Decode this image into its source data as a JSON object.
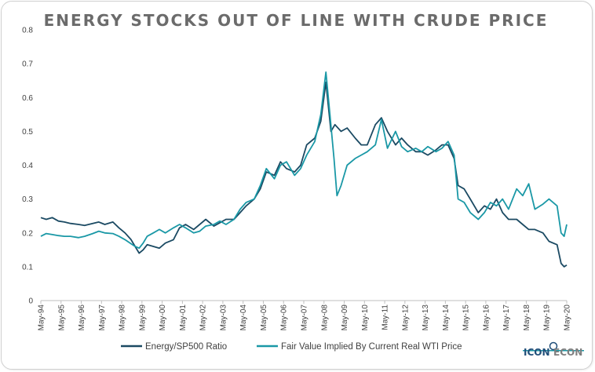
{
  "logo": {
    "text_left": "ICON",
    "text_right": "ECON",
    "color_left": "#1f4e79",
    "color_right": "#7f7f7f"
  },
  "chart_data": {
    "type": "line",
    "title": "ENERGY STOCKS OUT OF LINE WITH CRUDE PRICE",
    "xlabel": "",
    "ylabel": "",
    "ylim": [
      0,
      0.8
    ],
    "yticks": [
      "0",
      "0.1",
      "0.2",
      "0.3",
      "0.4",
      "0.5",
      "0.6",
      "0.7",
      "0.8"
    ],
    "xticks": [
      "May-94",
      "May-95",
      "May-96",
      "May-97",
      "May-98",
      "May-99",
      "May-00",
      "May-01",
      "May-02",
      "May-03",
      "May-04",
      "May-05",
      "May-06",
      "May-07",
      "May-08",
      "May-09",
      "May-10",
      "May-11",
      "May-12",
      "May-13",
      "May-14",
      "May-15",
      "May-16",
      "May-17",
      "May-18",
      "May-19",
      "May-20"
    ],
    "grid": false,
    "legend_position": "bottom",
    "series": [
      {
        "name": "Energy/SP500 Ratio",
        "color": "#1b4a63",
        "points": [
          [
            1994.33,
            0.245
          ],
          [
            1994.6,
            0.24
          ],
          [
            1994.9,
            0.245
          ],
          [
            1995.2,
            0.235
          ],
          [
            1995.5,
            0.232
          ],
          [
            1995.8,
            0.228
          ],
          [
            1996.2,
            0.225
          ],
          [
            1996.5,
            0.222
          ],
          [
            1996.9,
            0.228
          ],
          [
            1997.2,
            0.232
          ],
          [
            1997.5,
            0.225
          ],
          [
            1997.9,
            0.232
          ],
          [
            1998.2,
            0.215
          ],
          [
            1998.5,
            0.2
          ],
          [
            1998.8,
            0.18
          ],
          [
            1999.0,
            0.16
          ],
          [
            1999.2,
            0.14
          ],
          [
            1999.4,
            0.15
          ],
          [
            1999.6,
            0.165
          ],
          [
            1999.9,
            0.16
          ],
          [
            2000.2,
            0.155
          ],
          [
            2000.5,
            0.17
          ],
          [
            2000.9,
            0.18
          ],
          [
            2001.2,
            0.215
          ],
          [
            2001.5,
            0.225
          ],
          [
            2001.9,
            0.21
          ],
          [
            2002.2,
            0.225
          ],
          [
            2002.5,
            0.24
          ],
          [
            2002.9,
            0.22
          ],
          [
            2003.2,
            0.23
          ],
          [
            2003.5,
            0.24
          ],
          [
            2003.9,
            0.24
          ],
          [
            2004.2,
            0.26
          ],
          [
            2004.5,
            0.28
          ],
          [
            2004.9,
            0.3
          ],
          [
            2005.2,
            0.33
          ],
          [
            2005.5,
            0.38
          ],
          [
            2005.9,
            0.37
          ],
          [
            2006.2,
            0.41
          ],
          [
            2006.5,
            0.39
          ],
          [
            2006.9,
            0.38
          ],
          [
            2007.2,
            0.4
          ],
          [
            2007.5,
            0.46
          ],
          [
            2007.9,
            0.48
          ],
          [
            2008.2,
            0.53
          ],
          [
            2008.45,
            0.645
          ],
          [
            2008.7,
            0.5
          ],
          [
            2008.9,
            0.52
          ],
          [
            2009.2,
            0.5
          ],
          [
            2009.5,
            0.51
          ],
          [
            2009.9,
            0.48
          ],
          [
            2010.2,
            0.46
          ],
          [
            2010.5,
            0.46
          ],
          [
            2010.9,
            0.52
          ],
          [
            2011.2,
            0.54
          ],
          [
            2011.5,
            0.5
          ],
          [
            2011.9,
            0.46
          ],
          [
            2012.2,
            0.48
          ],
          [
            2012.5,
            0.46
          ],
          [
            2012.9,
            0.44
          ],
          [
            2013.2,
            0.44
          ],
          [
            2013.5,
            0.43
          ],
          [
            2013.9,
            0.445
          ],
          [
            2014.2,
            0.46
          ],
          [
            2014.5,
            0.46
          ],
          [
            2014.8,
            0.42
          ],
          [
            2015.0,
            0.34
          ],
          [
            2015.3,
            0.33
          ],
          [
            2015.6,
            0.3
          ],
          [
            2016.0,
            0.26
          ],
          [
            2016.3,
            0.28
          ],
          [
            2016.6,
            0.27
          ],
          [
            2016.9,
            0.3
          ],
          [
            2017.2,
            0.26
          ],
          [
            2017.5,
            0.24
          ],
          [
            2017.9,
            0.24
          ],
          [
            2018.2,
            0.225
          ],
          [
            2018.5,
            0.21
          ],
          [
            2018.8,
            0.21
          ],
          [
            2019.2,
            0.2
          ],
          [
            2019.5,
            0.175
          ],
          [
            2019.9,
            0.165
          ],
          [
            2020.1,
            0.11
          ],
          [
            2020.25,
            0.1
          ],
          [
            2020.38,
            0.105
          ]
        ]
      },
      {
        "name": "Fair Value Implied By Current Real WTI Price",
        "color": "#1a98a6",
        "points": [
          [
            1994.33,
            0.19
          ],
          [
            1994.6,
            0.198
          ],
          [
            1994.9,
            0.195
          ],
          [
            1995.2,
            0.192
          ],
          [
            1995.5,
            0.19
          ],
          [
            1995.8,
            0.19
          ],
          [
            1996.2,
            0.186
          ],
          [
            1996.5,
            0.19
          ],
          [
            1996.9,
            0.198
          ],
          [
            1997.2,
            0.205
          ],
          [
            1997.5,
            0.2
          ],
          [
            1997.9,
            0.198
          ],
          [
            1998.2,
            0.19
          ],
          [
            1998.5,
            0.18
          ],
          [
            1998.8,
            0.168
          ],
          [
            1999.0,
            0.16
          ],
          [
            1999.2,
            0.155
          ],
          [
            1999.4,
            0.17
          ],
          [
            1999.6,
            0.19
          ],
          [
            1999.9,
            0.2
          ],
          [
            2000.2,
            0.21
          ],
          [
            2000.5,
            0.2
          ],
          [
            2000.9,
            0.215
          ],
          [
            2001.2,
            0.225
          ],
          [
            2001.5,
            0.215
          ],
          [
            2001.9,
            0.2
          ],
          [
            2002.2,
            0.205
          ],
          [
            2002.5,
            0.22
          ],
          [
            2002.9,
            0.225
          ],
          [
            2003.2,
            0.235
          ],
          [
            2003.5,
            0.225
          ],
          [
            2003.9,
            0.24
          ],
          [
            2004.2,
            0.27
          ],
          [
            2004.5,
            0.29
          ],
          [
            2004.9,
            0.3
          ],
          [
            2005.2,
            0.34
          ],
          [
            2005.5,
            0.39
          ],
          [
            2005.9,
            0.36
          ],
          [
            2006.2,
            0.4
          ],
          [
            2006.5,
            0.41
          ],
          [
            2006.9,
            0.37
          ],
          [
            2007.2,
            0.39
          ],
          [
            2007.5,
            0.43
          ],
          [
            2007.9,
            0.47
          ],
          [
            2008.2,
            0.55
          ],
          [
            2008.45,
            0.675
          ],
          [
            2008.65,
            0.55
          ],
          [
            2008.85,
            0.42
          ],
          [
            2009.0,
            0.31
          ],
          [
            2009.2,
            0.34
          ],
          [
            2009.5,
            0.4
          ],
          [
            2009.9,
            0.42
          ],
          [
            2010.2,
            0.43
          ],
          [
            2010.5,
            0.44
          ],
          [
            2010.9,
            0.46
          ],
          [
            2011.2,
            0.535
          ],
          [
            2011.5,
            0.45
          ],
          [
            2011.9,
            0.5
          ],
          [
            2012.2,
            0.455
          ],
          [
            2012.5,
            0.44
          ],
          [
            2012.9,
            0.45
          ],
          [
            2013.2,
            0.44
          ],
          [
            2013.5,
            0.455
          ],
          [
            2013.9,
            0.44
          ],
          [
            2014.2,
            0.45
          ],
          [
            2014.5,
            0.47
          ],
          [
            2014.8,
            0.43
          ],
          [
            2015.0,
            0.3
          ],
          [
            2015.3,
            0.29
          ],
          [
            2015.6,
            0.26
          ],
          [
            2016.0,
            0.24
          ],
          [
            2016.3,
            0.26
          ],
          [
            2016.6,
            0.29
          ],
          [
            2016.9,
            0.28
          ],
          [
            2017.2,
            0.3
          ],
          [
            2017.5,
            0.27
          ],
          [
            2017.9,
            0.33
          ],
          [
            2018.2,
            0.31
          ],
          [
            2018.5,
            0.345
          ],
          [
            2018.8,
            0.27
          ],
          [
            2019.2,
            0.285
          ],
          [
            2019.5,
            0.3
          ],
          [
            2019.9,
            0.28
          ],
          [
            2020.1,
            0.2
          ],
          [
            2020.25,
            0.19
          ],
          [
            2020.38,
            0.225
          ]
        ]
      }
    ]
  }
}
